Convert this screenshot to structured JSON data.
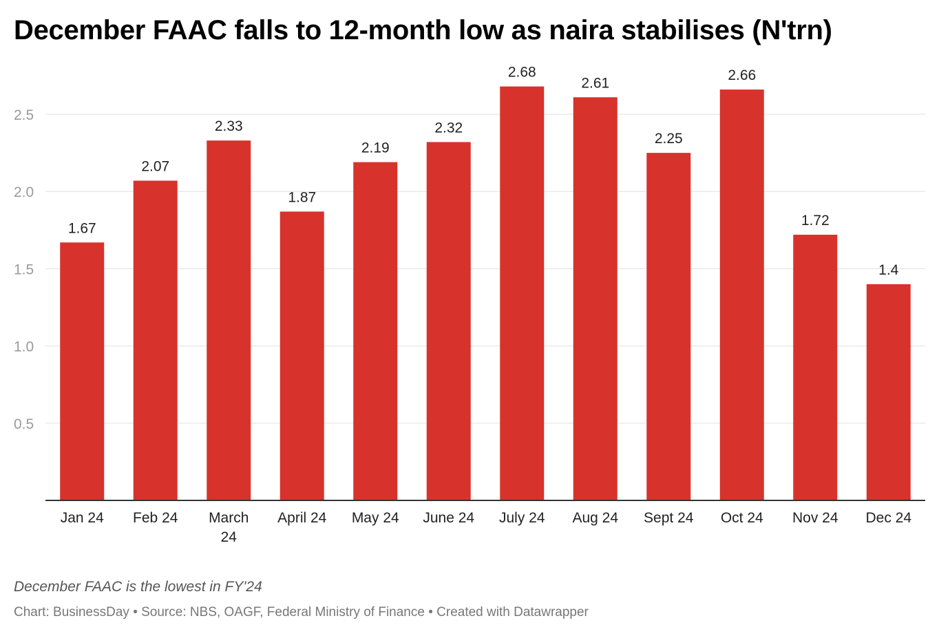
{
  "title": "December FAAC falls to 12-month low as naira stabilises (N'trn)",
  "note": "December FAAC is the lowest in FY'24",
  "footer": {
    "chart_by": "Chart: BusinessDay",
    "source": "Source: NBS, OAGF, Federal Ministry of Finance",
    "created": "Created with Datawrapper",
    "separator": "•"
  },
  "colors": {
    "bar": "#d8322c",
    "grid": "#e0e0e0",
    "axis": "#333333"
  },
  "chart_data": {
    "type": "bar",
    "title": "December FAAC falls to 12-month low as naira stabilises (N'trn)",
    "xlabel": "",
    "ylabel": "",
    "categories": [
      [
        "Jan 24"
      ],
      [
        "Feb 24"
      ],
      [
        "March",
        "24"
      ],
      [
        "April 24"
      ],
      [
        "May 24"
      ],
      [
        "June 24"
      ],
      [
        "July 24"
      ],
      [
        "Aug 24"
      ],
      [
        "Sept 24"
      ],
      [
        "Oct 24"
      ],
      [
        "Nov 24"
      ],
      [
        "Dec 24"
      ]
    ],
    "values": [
      1.67,
      2.07,
      2.33,
      1.87,
      2.19,
      2.32,
      2.68,
      2.61,
      2.25,
      2.66,
      1.72,
      1.4
    ],
    "data_labels": [
      "1.67",
      "2.07",
      "2.33",
      "1.87",
      "2.19",
      "2.32",
      "2.68",
      "2.61",
      "2.25",
      "2.66",
      "1.72",
      "1.4"
    ],
    "yticks": [
      0.5,
      1.0,
      1.5,
      2.0,
      2.5
    ],
    "ytick_labels": [
      "0.5",
      "1.0",
      "1.5",
      "2.0",
      "2.5"
    ],
    "ylim": [
      0,
      2.68
    ],
    "grid": true,
    "legend": "none"
  }
}
